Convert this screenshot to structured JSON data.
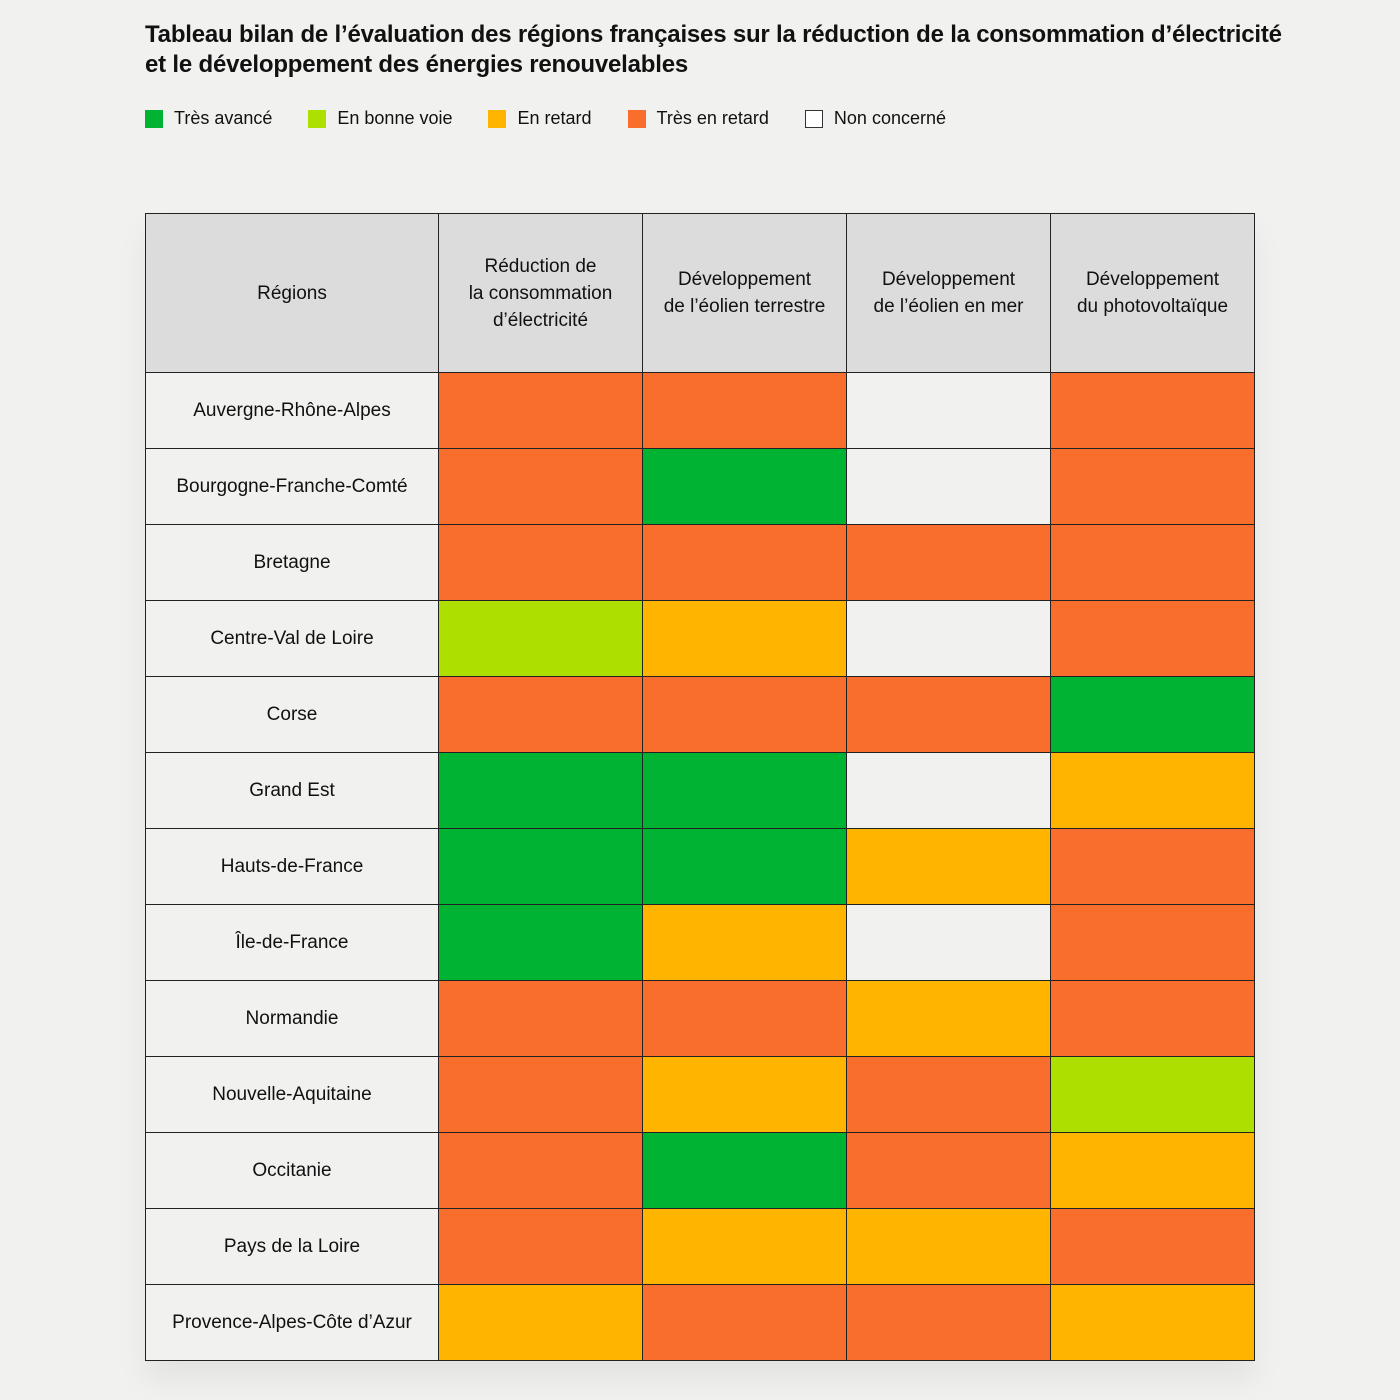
{
  "title": "Tableau bilan de l’évaluation des régions françaises sur la réduction de la consommation d’électricité et le développement des énergies renouvelables",
  "legend": [
    {
      "label": "Très avancé",
      "color": "#00b333"
    },
    {
      "label": "En bonne voie",
      "color": "#addf00"
    },
    {
      "label": "En retard",
      "color": "#ffb400"
    },
    {
      "label": "Très en retard",
      "color": "#f96e2d"
    },
    {
      "label": "Non concerné",
      "color": "#f1f1ef"
    }
  ],
  "chart_data": {
    "type": "table",
    "row_header": "Régions",
    "columns": [
      "Réduction de la consommation d’électricité",
      "Développement de l’éolien terrestre",
      "Développement de l’éolien en mer",
      "Développement du photovoltaïque"
    ],
    "rows": [
      {
        "region": "Auvergne-Rhône-Alpes",
        "values": [
          "Très en retard",
          "Très en retard",
          "Non concerné",
          "Très en retard"
        ]
      },
      {
        "region": "Bourgogne-Franche-Comté",
        "values": [
          "Très en retard",
          "Très avancé",
          "Non concerné",
          "Très en retard"
        ]
      },
      {
        "region": "Bretagne",
        "values": [
          "Très en retard",
          "Très en retard",
          "Très en retard",
          "Très en retard"
        ]
      },
      {
        "region": "Centre-Val de Loire",
        "values": [
          "En bonne voie",
          "En retard",
          "Non concerné",
          "Très en retard"
        ]
      },
      {
        "region": "Corse",
        "values": [
          "Très en retard",
          "Très en retard",
          "Très en retard",
          "Très avancé"
        ]
      },
      {
        "region": "Grand Est",
        "values": [
          "Très avancé",
          "Très avancé",
          "Non concerné",
          "En retard"
        ]
      },
      {
        "region": "Hauts-de-France",
        "values": [
          "Très avancé",
          "Très avancé",
          "En retard",
          "Très en retard"
        ]
      },
      {
        "region": "Île-de-France",
        "values": [
          "Très avancé",
          "En retard",
          "Non concerné",
          "Très en retard"
        ]
      },
      {
        "region": "Normandie",
        "values": [
          "Très en retard",
          "Très en retard",
          "En retard",
          "Très en retard"
        ]
      },
      {
        "region": "Nouvelle-Aquitaine",
        "values": [
          "Très en retard",
          "En retard",
          "Très en retard",
          "En bonne voie"
        ]
      },
      {
        "region": "Occitanie",
        "values": [
          "Très en retard",
          "Très avancé",
          "Très en retard",
          "En retard"
        ]
      },
      {
        "region": "Pays de la Loire",
        "values": [
          "Très en retard",
          "En retard",
          "En retard",
          "Très en retard"
        ]
      },
      {
        "region": "Provence-Alpes-Côte d’Azur",
        "values": [
          "En retard",
          "Très en retard",
          "Très en retard",
          "En retard"
        ]
      }
    ]
  }
}
